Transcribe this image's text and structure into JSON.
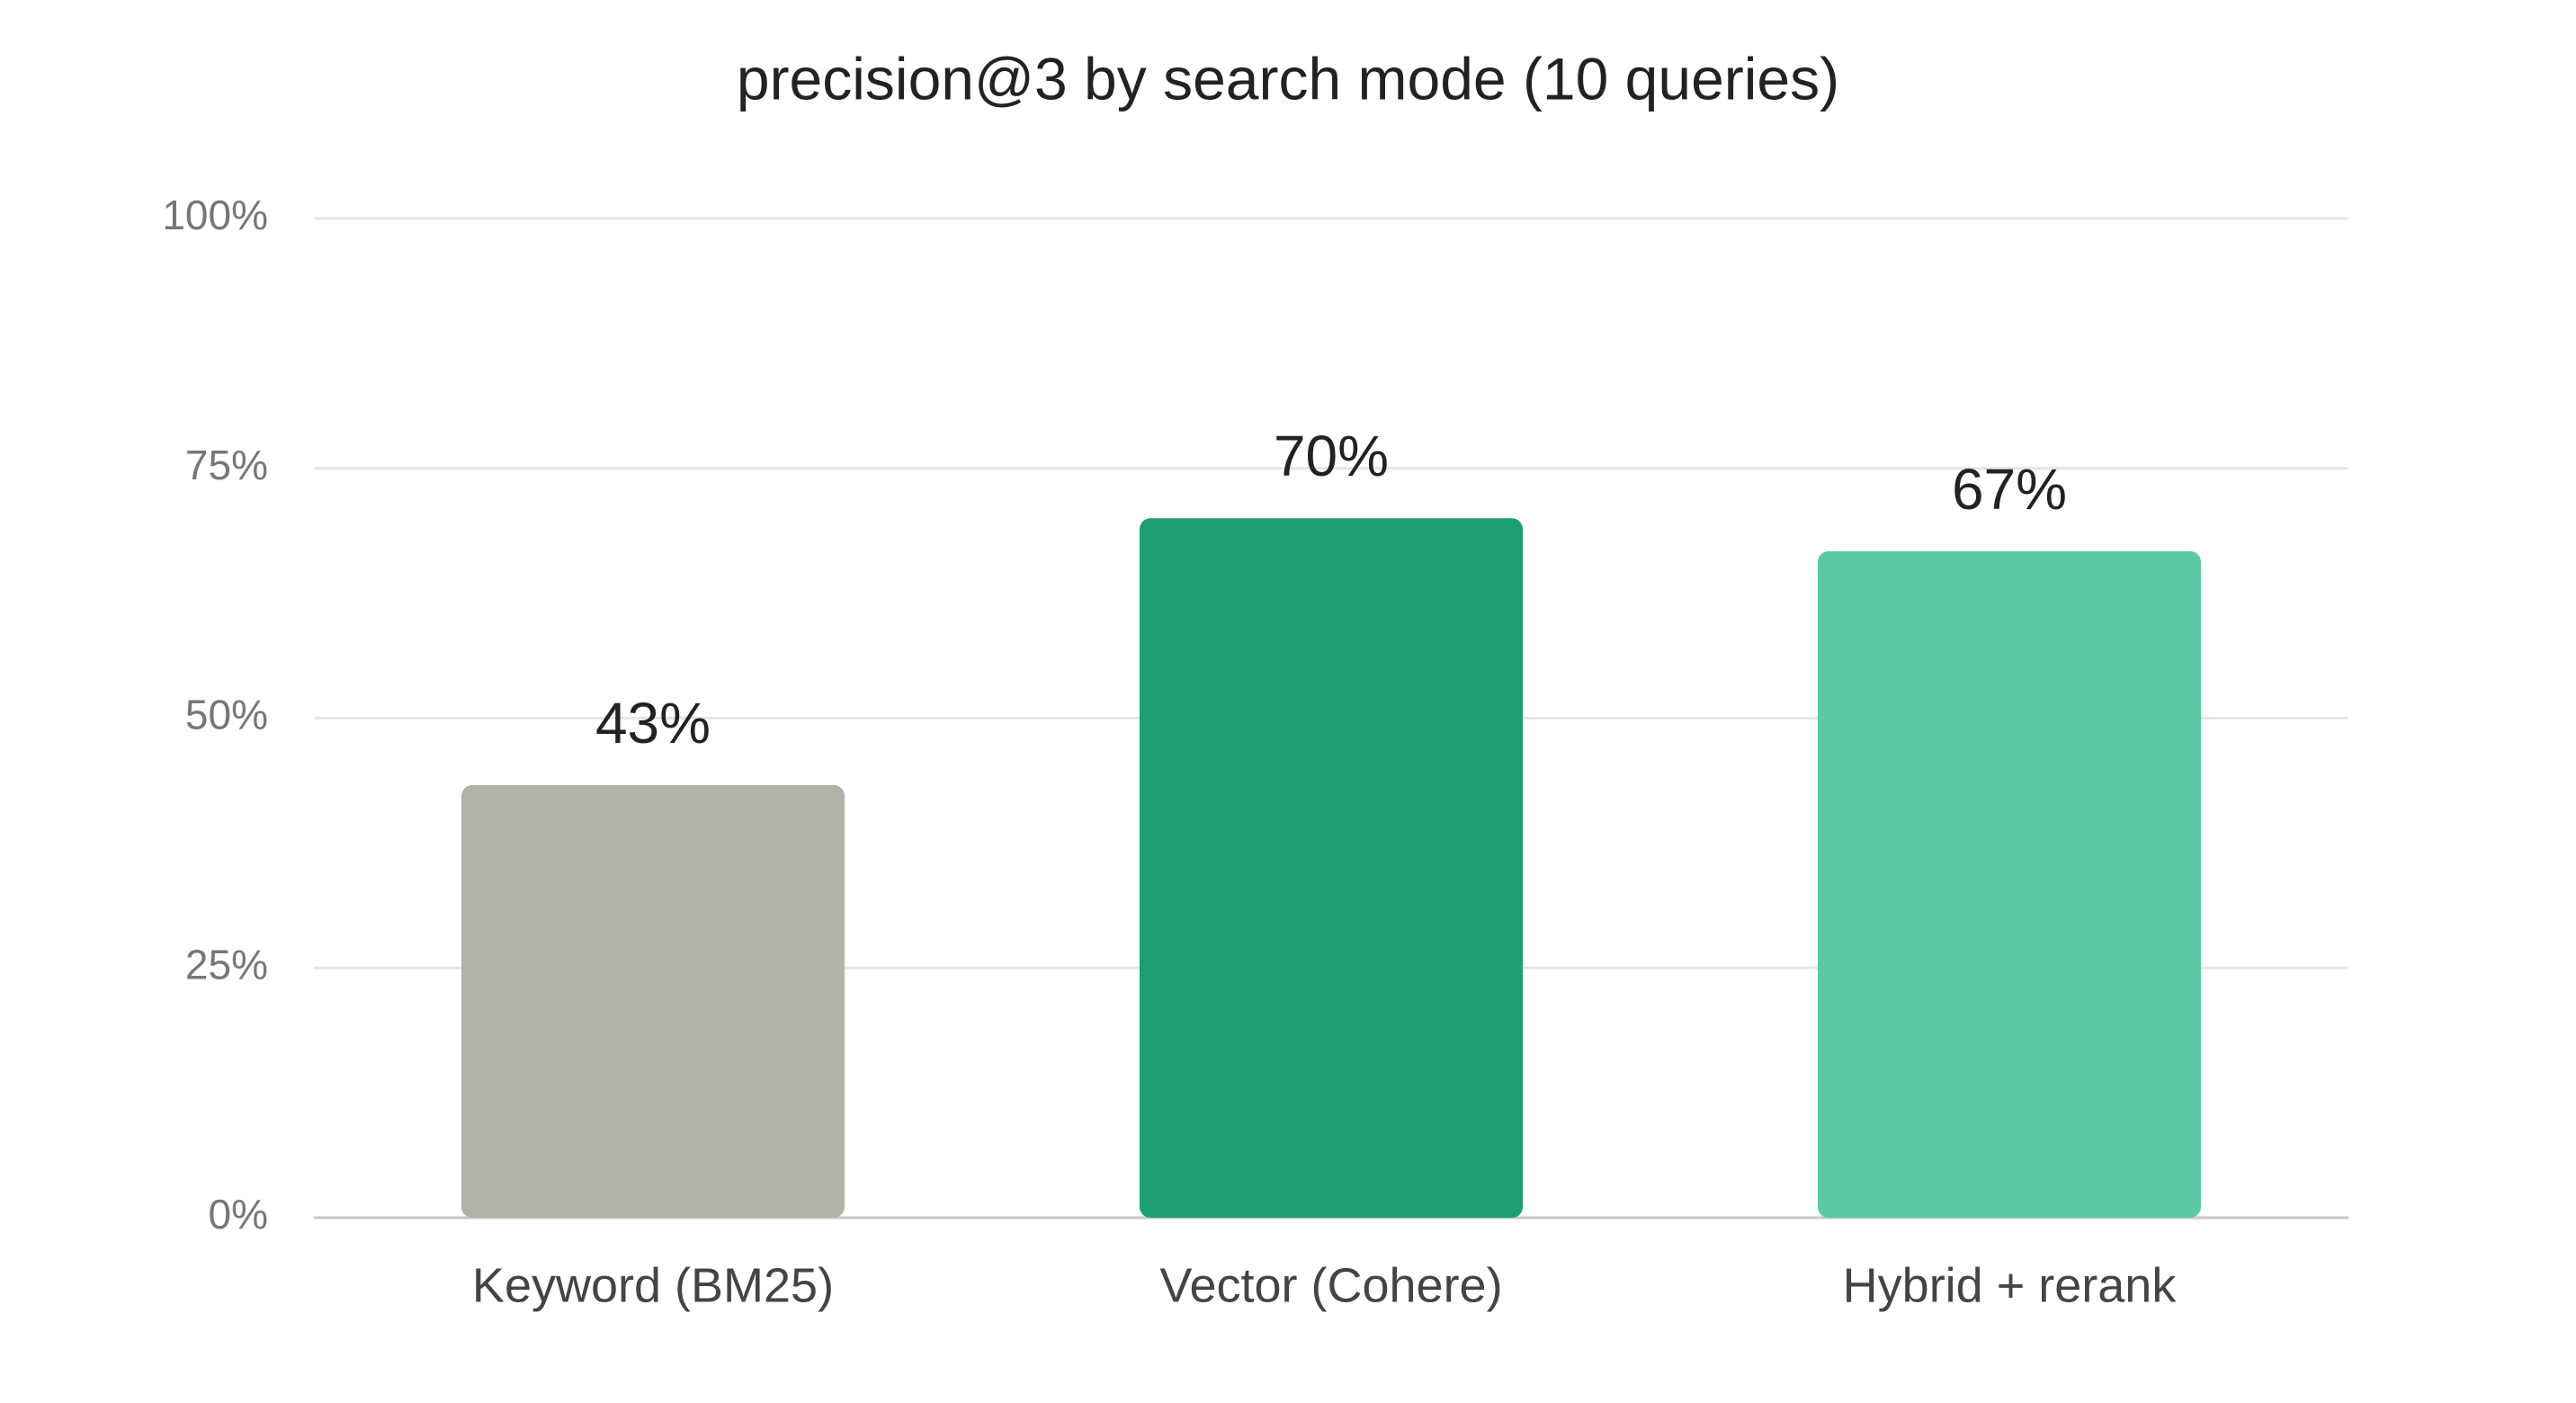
{
  "chart_data": {
    "type": "bar",
    "title": "precision@3 by search mode (10 queries)",
    "categories": [
      "Keyword (BM25)",
      "Vector (Cohere)",
      "Hybrid + rerank"
    ],
    "values": [
      43.3,
      70,
      66.7
    ],
    "value_labels": [
      "43%",
      "70%",
      "67%"
    ],
    "colors": [
      "#b3b2a9",
      "#1d9e75",
      "#5dc9a4"
    ],
    "ylim": [
      0,
      100
    ],
    "yticks": [
      {
        "value": 0,
        "label": "0%"
      },
      {
        "value": 25,
        "label": "25%"
      },
      {
        "value": 50,
        "label": "50%"
      },
      {
        "value": 75,
        "label": "75%"
      },
      {
        "value": 100,
        "label": "100%"
      }
    ],
    "grid": true
  }
}
